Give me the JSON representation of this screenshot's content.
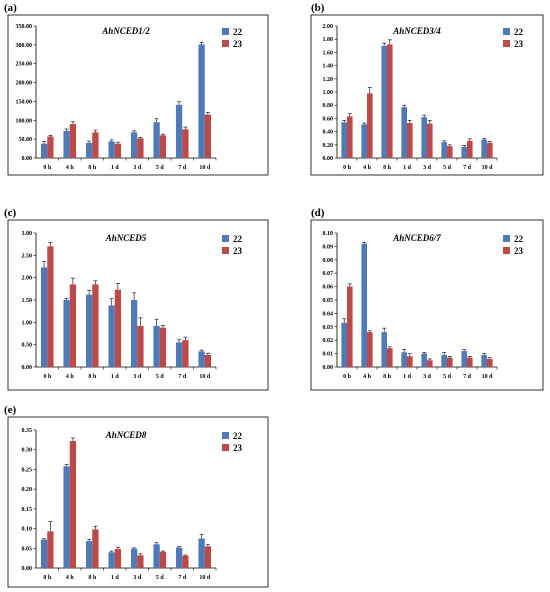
{
  "colors": {
    "s22": "#4F7AB9",
    "s23": "#BC4A48",
    "frame": "#000000",
    "error": "#000000"
  },
  "chart_data": [
    {
      "label": "(a)",
      "type": "bar",
      "title": "AhNCED1/2",
      "categories": [
        "0 h",
        "4 h",
        "8 h",
        "1 d",
        "3 d",
        "5 d",
        "7 d",
        "10 d"
      ],
      "yticks": [
        "0.00",
        "50.00",
        "100.00",
        "150.00",
        "200.00",
        "250.00",
        "300.00",
        "350.00"
      ],
      "ylim": [
        0,
        350
      ],
      "legend_position": "top-right",
      "series": [
        {
          "name": "22",
          "values": [
            38,
            72,
            40,
            44,
            68,
            95,
            141,
            301
          ],
          "errors": [
            6,
            5,
            5,
            4,
            4,
            9,
            8,
            6
          ]
        },
        {
          "name": "23",
          "values": [
            57,
            90,
            68,
            38,
            52,
            60,
            76,
            115
          ],
          "errors": [
            3,
            6,
            6,
            4,
            3,
            3,
            6,
            6
          ]
        }
      ]
    },
    {
      "label": "(b)",
      "type": "bar",
      "title": "AhNCED3/4",
      "categories": [
        "0 h",
        "4 h",
        "8 h",
        "1 d",
        "3 d",
        "5 d",
        "7 d",
        "10 d"
      ],
      "yticks": [
        "0.00",
        "0.20",
        "0.40",
        "0.60",
        "0.80",
        "1.00",
        "1.20",
        "1.40",
        "1.60",
        "1.80",
        "2.00"
      ],
      "ylim": [
        0,
        2.0
      ],
      "legend_position": "top-right",
      "series": [
        {
          "name": "22",
          "values": [
            0.54,
            0.51,
            1.7,
            0.77,
            0.62,
            0.24,
            0.17,
            0.28
          ],
          "errors": [
            0.03,
            0.02,
            0.04,
            0.03,
            0.03,
            0.02,
            0.02,
            0.02
          ]
        },
        {
          "name": "23",
          "values": [
            0.63,
            0.98,
            1.72,
            0.53,
            0.52,
            0.18,
            0.26,
            0.23
          ],
          "errors": [
            0.04,
            0.09,
            0.07,
            0.04,
            0.05,
            0.02,
            0.03,
            0.02
          ]
        }
      ]
    },
    {
      "label": "(c)",
      "type": "bar",
      "title": "AhNCED5",
      "categories": [
        "0 h",
        "4 h",
        "8 h",
        "1 d",
        "3 d",
        "5 d",
        "7 d",
        "10 d"
      ],
      "yticks": [
        "0.00",
        "0.50",
        "1.00",
        "1.50",
        "2.00",
        "2.50",
        "3.00"
      ],
      "ylim": [
        0,
        3.0
      ],
      "legend_position": "top-right",
      "series": [
        {
          "name": "22",
          "values": [
            2.23,
            1.5,
            1.62,
            1.38,
            1.5,
            0.92,
            0.55,
            0.35
          ],
          "errors": [
            0.13,
            0.04,
            0.1,
            0.15,
            0.16,
            0.15,
            0.06,
            0.03
          ]
        },
        {
          "name": "23",
          "values": [
            2.7,
            1.85,
            1.85,
            1.73,
            0.92,
            0.88,
            0.6,
            0.27
          ],
          "errors": [
            0.09,
            0.14,
            0.08,
            0.14,
            0.18,
            0.05,
            0.07,
            0.04
          ]
        }
      ]
    },
    {
      "label": "(d)",
      "type": "bar",
      "title": "AhNCED6/7",
      "categories": [
        "0 h",
        "4 h",
        "8 h",
        "1 d",
        "3 d",
        "5 d",
        "7 d",
        "10 d"
      ],
      "yticks": [
        "0.00",
        "0.01",
        "0.02",
        "0.03",
        "0.04",
        "0.05",
        "0.06",
        "0.07",
        "0.08",
        "0.09",
        "0.10"
      ],
      "ylim": [
        0,
        0.1
      ],
      "legend_position": "top-right",
      "series": [
        {
          "name": "22",
          "values": [
            0.033,
            0.092,
            0.026,
            0.011,
            0.01,
            0.009,
            0.012,
            0.009
          ],
          "errors": [
            0.003,
            0.001,
            0.003,
            0.002,
            0.001,
            0.002,
            0.001,
            0.001
          ]
        },
        {
          "name": "23",
          "values": [
            0.06,
            0.026,
            0.014,
            0.008,
            0.005,
            0.007,
            0.007,
            0.006
          ],
          "errors": [
            0.002,
            0.001,
            0.001,
            0.002,
            0.001,
            0.001,
            0.001,
            0.001
          ]
        }
      ]
    },
    {
      "label": "(e)",
      "type": "bar",
      "title": "AhNCED8",
      "categories": [
        "0 h",
        "4 h",
        "8 h",
        "1 d",
        "3 d",
        "5 d",
        "7 d",
        "10 d"
      ],
      "yticks": [
        "0.00",
        "0.05",
        "0.10",
        "0.15",
        "0.20",
        "0.25",
        "0.30",
        "0.35"
      ],
      "ylim": [
        0,
        0.35
      ],
      "legend_position": "top-right",
      "series": [
        {
          "name": "22",
          "values": [
            0.072,
            0.258,
            0.068,
            0.04,
            0.049,
            0.06,
            0.052,
            0.075
          ],
          "errors": [
            0.002,
            0.004,
            0.005,
            0.003,
            0.002,
            0.004,
            0.002,
            0.01
          ]
        },
        {
          "name": "23",
          "values": [
            0.093,
            0.322,
            0.098,
            0.048,
            0.032,
            0.041,
            0.031,
            0.055
          ],
          "errors": [
            0.025,
            0.008,
            0.008,
            0.005,
            0.004,
            0.002,
            0.002,
            0.004
          ]
        }
      ]
    }
  ]
}
